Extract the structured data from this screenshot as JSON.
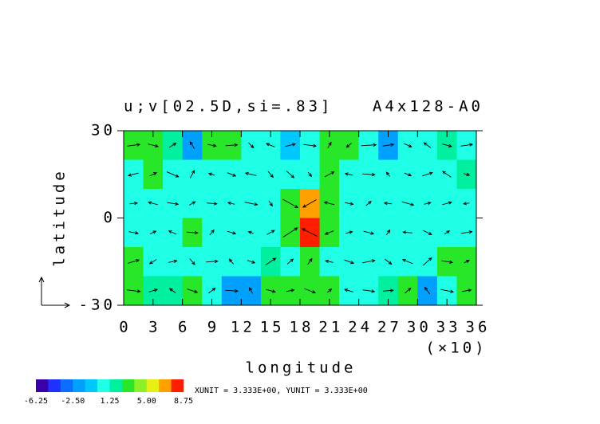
{
  "chart_data": {
    "type": "contour",
    "title": "u;v[02.5D,si=.83]",
    "title_right": "A4x128-A0",
    "xlabel": "longitude",
    "xnote": "(×10)",
    "ylabel": "latitude",
    "xlim": [
      0,
      36
    ],
    "xticks": [
      0,
      3,
      6,
      9,
      12,
      15,
      18,
      21,
      24,
      27,
      30,
      33,
      36
    ],
    "ylim": [
      -30,
      30
    ],
    "yticks": [
      -30,
      0,
      30
    ],
    "x": [
      1,
      3,
      5,
      7,
      9,
      11,
      13,
      15,
      17,
      19,
      21,
      23,
      25,
      27,
      29,
      31,
      33,
      35
    ],
    "y": [
      25,
      15,
      5,
      -5,
      -15,
      -25
    ],
    "field": [
      [
        3.0,
        3.2,
        1.5,
        -1.5,
        2.5,
        3.0,
        0.5,
        0.5,
        -1.0,
        0.5,
        3.2,
        3.5,
        0.5,
        -2.0,
        0.5,
        0.5,
        1.5,
        0.5
      ],
      [
        0.5,
        2.5,
        0.5,
        0.5,
        0.5,
        0.5,
        0.5,
        0.5,
        0.5,
        0.5,
        2.5,
        0.5,
        0.5,
        0.5,
        0.5,
        0.5,
        0.5,
        2.0
      ],
      [
        0.5,
        0.5,
        0.5,
        0.5,
        0.5,
        0.5,
        0.5,
        0.5,
        3.5,
        6.5,
        2.5,
        0.5,
        0.5,
        0.5,
        0.5,
        0.5,
        0.5,
        0.5
      ],
      [
        0.5,
        0.5,
        0.5,
        2.5,
        0.5,
        0.5,
        0.5,
        0.5,
        3.5,
        7.5,
        2.5,
        0.5,
        0.5,
        0.5,
        0.5,
        0.5,
        0.5,
        0.5
      ],
      [
        2.5,
        0.5,
        0.5,
        0.5,
        0.5,
        0.5,
        0.5,
        2.0,
        0.5,
        2.5,
        0.5,
        0.5,
        0.5,
        0.5,
        0.5,
        0.5,
        2.5,
        2.5
      ],
      [
        2.5,
        2.0,
        1.5,
        3.0,
        0.5,
        -1.5,
        -2.0,
        2.5,
        2.5,
        2.5,
        2.5,
        0.5,
        0.5,
        2.0,
        3.0,
        -2.0,
        0.5,
        2.5
      ]
    ],
    "u": [
      [
        1.5,
        1.2,
        0.8,
        -0.5,
        1.0,
        1.4,
        0.6,
        -1.0,
        1.2,
        1.5,
        0.4,
        -0.6,
        1.8,
        1.3,
        0.9,
        -0.8,
        1.1,
        1.4
      ],
      [
        -1.2,
        0.8,
        1.4,
        0.5,
        -0.7,
        1.0,
        -1.3,
        0.6,
        0.9,
        0.4,
        1.1,
        -0.9,
        1.5,
        -0.4,
        0.8,
        1.2,
        -1.0,
        0.7
      ],
      [
        0.9,
        -1.1,
        1.3,
        0.7,
        1.2,
        -0.8,
        1.5,
        0.4,
        1.8,
        -1.6,
        -1.2,
        1.0,
        0.6,
        -0.9,
        1.4,
        0.8,
        1.1,
        -0.7
      ],
      [
        1.1,
        0.7,
        -0.9,
        1.3,
        0.5,
        1.0,
        -0.6,
        0.9,
        1.7,
        -1.8,
        -1.0,
        0.8,
        1.2,
        0.4,
        -1.1,
        1.0,
        0.6,
        1.3
      ],
      [
        1.3,
        -0.8,
        1.0,
        0.6,
        1.4,
        -0.5,
        0.9,
        1.2,
        0.7,
        0.5,
        -0.9,
        1.1,
        1.5,
        0.8,
        -1.2,
        1.0,
        1.3,
        0.6
      ],
      [
        1.6,
        1.0,
        -0.7,
        1.2,
        0.8,
        1.5,
        -0.4,
        1.1,
        0.9,
        1.3,
        0.5,
        -1.0,
        1.4,
        1.2,
        0.7,
        -0.6,
        1.5,
        1.1
      ]
    ],
    "v": [
      [
        0.2,
        -0.3,
        0.5,
        0.8,
        -0.2,
        0.1,
        -0.6,
        0.4,
        0.3,
        -0.2,
        0.7,
        -0.5,
        0.1,
        0.2,
        -0.4,
        0.6,
        -0.3,
        0.2
      ],
      [
        -0.3,
        0.4,
        -0.6,
        0.9,
        0.2,
        -0.4,
        0.3,
        -0.7,
        -0.8,
        -0.5,
        0.6,
        0.2,
        -0.1,
        0.5,
        -0.3,
        0.4,
        0.7,
        -0.2
      ],
      [
        0.1,
        0.3,
        -0.2,
        0.4,
        -0.1,
        0.2,
        -0.3,
        -0.6,
        -1.0,
        -0.9,
        0.3,
        -0.2,
        0.5,
        0.1,
        -0.4,
        0.2,
        0.3,
        -0.1
      ],
      [
        -0.2,
        0.3,
        0.4,
        -0.1,
        0.6,
        -0.3,
        0.2,
        0.5,
        1.1,
        0.9,
        -0.4,
        0.2,
        -0.3,
        0.6,
        0.1,
        -0.5,
        0.4,
        0.2
      ],
      [
        0.4,
        -0.5,
        0.2,
        -0.7,
        0.1,
        0.6,
        -0.3,
        0.8,
        0.6,
        0.7,
        0.2,
        -0.4,
        0.3,
        -0.6,
        0.5,
        0.9,
        -0.2,
        0.3
      ],
      [
        -0.2,
        0.3,
        0.5,
        -0.4,
        0.6,
        -0.1,
        0.7,
        -0.3,
        0.2,
        -0.5,
        0.4,
        0.3,
        -0.2,
        0.1,
        0.6,
        0.8,
        -0.3,
        0.2
      ]
    ],
    "levels": [
      -6.25,
      -5,
      -3.75,
      -2.5,
      -1.25,
      0,
      1.25,
      2.5,
      3.75,
      5,
      6.25,
      7.5,
      8.75
    ],
    "level_ticks": [
      -6.25,
      {
        "value": -2.5,
        "label": "-2.50"
      },
      1.25,
      {
        "value": 5,
        "label": "5.00"
      },
      8.75
    ],
    "colors": [
      "#3c00a8",
      "#1e32ff",
      "#0a6eff",
      "#00a0ff",
      "#00c8ff",
      "#1effe6",
      "#00f0a0",
      "#28e628",
      "#8cf028",
      "#e6f014",
      "#ffa000",
      "#ff1e00"
    ],
    "arrow_color": "#000000",
    "unit_note": "XUNIT = 3.333E+00, YUNIT = 3.333E+00",
    "reference_vector": {
      "u": 3.333,
      "v": 3.333
    }
  }
}
